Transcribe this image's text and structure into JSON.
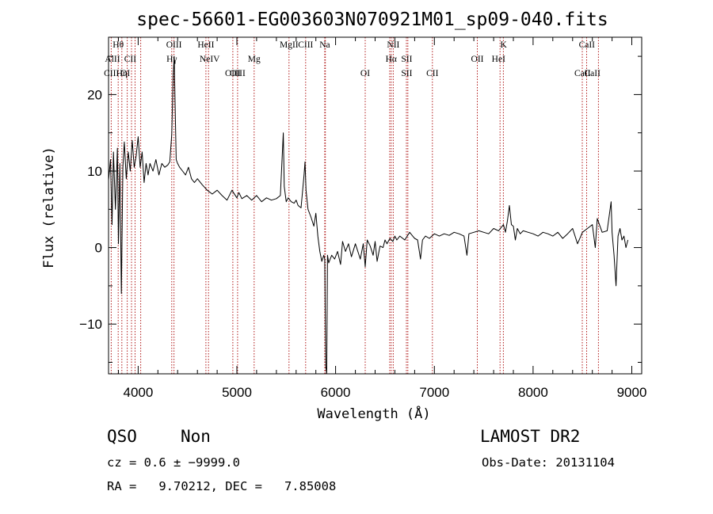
{
  "chart_data": {
    "type": "line",
    "title": "spec-56601-EG003603N070921M01_sp09-040.fits",
    "xlabel": "Wavelength (Å)",
    "ylabel": "Flux (relative)",
    "xlim": [
      3700,
      9100
    ],
    "ylim": [
      -16.5,
      27.5
    ],
    "x_ticks": [
      "4000",
      "5000",
      "6000",
      "7000",
      "8000",
      "9000"
    ],
    "y_ticks": [
      "−10",
      "0",
      "10",
      "20"
    ],
    "series": [
      {
        "points": [
          [
            3700,
            8.8
          ],
          [
            3720,
            11.5
          ],
          [
            3735,
            3.0
          ],
          [
            3750,
            12.5
          ],
          [
            3770,
            5.0
          ],
          [
            3790,
            13.0
          ],
          [
            3800,
            0.5
          ],
          [
            3815,
            11.0
          ],
          [
            3830,
            -6.0
          ],
          [
            3845,
            10.5
          ],
          [
            3860,
            13.8
          ],
          [
            3880,
            9.0
          ],
          [
            3900,
            12.5
          ],
          [
            3920,
            10.0
          ],
          [
            3940,
            14.0
          ],
          [
            3960,
            10.5
          ],
          [
            3980,
            12.0
          ],
          [
            4000,
            14.5
          ],
          [
            4020,
            10.5
          ],
          [
            4040,
            12.5
          ],
          [
            4060,
            8.5
          ],
          [
            4080,
            11.0
          ],
          [
            4100,
            9.5
          ],
          [
            4120,
            11.0
          ],
          [
            4150,
            10.0
          ],
          [
            4180,
            11.5
          ],
          [
            4210,
            9.5
          ],
          [
            4240,
            11.0
          ],
          [
            4270,
            10.5
          ],
          [
            4300,
            10.8
          ],
          [
            4320,
            11.2
          ],
          [
            4340,
            14.8
          ],
          [
            4355,
            22.5
          ],
          [
            4365,
            25.0
          ],
          [
            4372,
            20.0
          ],
          [
            4385,
            11.5
          ],
          [
            4400,
            11.0
          ],
          [
            4420,
            10.5
          ],
          [
            4450,
            10.0
          ],
          [
            4480,
            9.5
          ],
          [
            4510,
            10.5
          ],
          [
            4540,
            9.0
          ],
          [
            4570,
            8.5
          ],
          [
            4600,
            9.0
          ],
          [
            4650,
            8.2
          ],
          [
            4700,
            7.5
          ],
          [
            4750,
            7.0
          ],
          [
            4800,
            7.5
          ],
          [
            4850,
            6.8
          ],
          [
            4900,
            6.2
          ],
          [
            4950,
            7.5
          ],
          [
            5000,
            6.5
          ],
          [
            5020,
            7.2
          ],
          [
            5050,
            6.4
          ],
          [
            5100,
            6.8
          ],
          [
            5150,
            6.2
          ],
          [
            5200,
            6.8
          ],
          [
            5250,
            6.0
          ],
          [
            5300,
            6.5
          ],
          [
            5350,
            6.2
          ],
          [
            5400,
            6.4
          ],
          [
            5440,
            6.8
          ],
          [
            5470,
            15.0
          ],
          [
            5480,
            8.0
          ],
          [
            5500,
            6.0
          ],
          [
            5520,
            6.5
          ],
          [
            5550,
            6.0
          ],
          [
            5580,
            5.8
          ],
          [
            5600,
            6.2
          ],
          [
            5620,
            5.5
          ],
          [
            5650,
            5.2
          ],
          [
            5680,
            9.5
          ],
          [
            5690,
            11.2
          ],
          [
            5700,
            7.5
          ],
          [
            5720,
            5.0
          ],
          [
            5750,
            4.0
          ],
          [
            5780,
            2.8
          ],
          [
            5800,
            4.5
          ],
          [
            5820,
            1.5
          ],
          [
            5840,
            -0.5
          ],
          [
            5860,
            -1.8
          ],
          [
            5880,
            -1.0
          ],
          [
            5890,
            -1.5
          ],
          [
            5900,
            -15.5
          ],
          [
            5910,
            -16.5
          ],
          [
            5918,
            -1.0
          ],
          [
            5930,
            -2.0
          ],
          [
            5960,
            -1.0
          ],
          [
            5990,
            -1.5
          ],
          [
            6020,
            -0.5
          ],
          [
            6050,
            -2.2
          ],
          [
            6070,
            0.8
          ],
          [
            6100,
            -0.5
          ],
          [
            6130,
            0.5
          ],
          [
            6160,
            -1.2
          ],
          [
            6200,
            0.5
          ],
          [
            6250,
            -1.5
          ],
          [
            6280,
            0.5
          ],
          [
            6300,
            -2.5
          ],
          [
            6320,
            1.0
          ],
          [
            6350,
            0.2
          ],
          [
            6380,
            -1.0
          ],
          [
            6400,
            0.8
          ],
          [
            6420,
            -1.8
          ],
          [
            6450,
            0.2
          ],
          [
            6480,
            0.0
          ],
          [
            6500,
            1.0
          ],
          [
            6520,
            0.5
          ],
          [
            6550,
            1.2
          ],
          [
            6580,
            0.8
          ],
          [
            6600,
            1.5
          ],
          [
            6620,
            1.0
          ],
          [
            6650,
            1.5
          ],
          [
            6680,
            1.2
          ],
          [
            6700,
            1.0
          ],
          [
            6730,
            1.6
          ],
          [
            6750,
            2.0
          ],
          [
            6780,
            1.5
          ],
          [
            6800,
            1.2
          ],
          [
            6830,
            1.0
          ],
          [
            6860,
            -1.5
          ],
          [
            6880,
            1.0
          ],
          [
            6910,
            1.5
          ],
          [
            6950,
            1.2
          ],
          [
            7000,
            1.8
          ],
          [
            7050,
            1.5
          ],
          [
            7100,
            1.8
          ],
          [
            7150,
            1.6
          ],
          [
            7200,
            2.0
          ],
          [
            7250,
            1.8
          ],
          [
            7300,
            1.5
          ],
          [
            7330,
            -1.0
          ],
          [
            7350,
            1.8
          ],
          [
            7400,
            2.0
          ],
          [
            7450,
            2.2
          ],
          [
            7500,
            2.0
          ],
          [
            7550,
            1.8
          ],
          [
            7600,
            2.5
          ],
          [
            7650,
            2.2
          ],
          [
            7700,
            3.0
          ],
          [
            7720,
            2.0
          ],
          [
            7740,
            3.5
          ],
          [
            7760,
            5.5
          ],
          [
            7780,
            3.0
          ],
          [
            7800,
            2.8
          ],
          [
            7820,
            1.0
          ],
          [
            7840,
            2.5
          ],
          [
            7870,
            1.8
          ],
          [
            7900,
            2.2
          ],
          [
            7950,
            2.0
          ],
          [
            8000,
            1.8
          ],
          [
            8050,
            1.5
          ],
          [
            8100,
            2.0
          ],
          [
            8150,
            1.8
          ],
          [
            8200,
            1.5
          ],
          [
            8250,
            2.0
          ],
          [
            8300,
            1.2
          ],
          [
            8350,
            1.8
          ],
          [
            8400,
            2.5
          ],
          [
            8450,
            0.5
          ],
          [
            8500,
            2.0
          ],
          [
            8550,
            2.5
          ],
          [
            8600,
            3.0
          ],
          [
            8630,
            0.0
          ],
          [
            8650,
            3.8
          ],
          [
            8700,
            2.0
          ],
          [
            8750,
            2.2
          ],
          [
            8790,
            6.0
          ],
          [
            8800,
            2.0
          ],
          [
            8820,
            -1.0
          ],
          [
            8840,
            -5.0
          ],
          [
            8860,
            1.5
          ],
          [
            8880,
            2.5
          ],
          [
            8900,
            1.0
          ],
          [
            8920,
            1.5
          ],
          [
            8940,
            0.0
          ],
          [
            8960,
            1.0
          ]
        ]
      }
    ],
    "grid": false,
    "line_labels": [
      {
        "text": "Hθ",
        "w": 3798,
        "row": 1
      },
      {
        "text": "AlII",
        "w": 3740,
        "row": 2
      },
      {
        "text": "CII",
        "w": 3920,
        "row": 2
      },
      {
        "text": "CIII",
        "w": 3730,
        "row": 3
      },
      {
        "text": "Hη",
        "w": 3835,
        "row": 3
      },
      {
        "text": "OI",
        "w": 3870,
        "row": 3
      },
      {
        "text": "OIII",
        "w": 4363,
        "row": 1
      },
      {
        "text": "Hγ",
        "w": 4340,
        "row": 2
      },
      {
        "text": "HeII",
        "w": 4686,
        "row": 1
      },
      {
        "text": "NeIV",
        "w": 4725,
        "row": 2
      },
      {
        "text": "OIII",
        "w": 4959,
        "row": 3
      },
      {
        "text": "OIII",
        "w": 5007,
        "row": 3
      },
      {
        "text": "Mg",
        "w": 5175,
        "row": 2
      },
      {
        "text": "MgII",
        "w": 5528,
        "row": 1
      },
      {
        "text": "CIII",
        "w": 5696,
        "row": 1
      },
      {
        "text": "Na",
        "w": 5890,
        "row": 1
      },
      {
        "text": "OI",
        "w": 6300,
        "row": 3
      },
      {
        "text": "NII",
        "w": 6584,
        "row": 1
      },
      {
        "text": "Hα",
        "w": 6563,
        "row": 2
      },
      {
        "text": "SII",
        "w": 6720,
        "row": 2
      },
      {
        "text": "SII",
        "w": 6720,
        "row": 3
      },
      {
        "text": "CII",
        "w": 6980,
        "row": 3
      },
      {
        "text": "OII",
        "w": 7435,
        "row": 2
      },
      {
        "text": "K",
        "w": 7701,
        "row": 1
      },
      {
        "text": "HeI",
        "w": 7650,
        "row": 2
      },
      {
        "text": "CaII",
        "w": 8545,
        "row": 1
      },
      {
        "text": "CaII",
        "w": 8500,
        "row": 3
      },
      {
        "text": "CaII",
        "w": 8600,
        "row": 3
      }
    ],
    "line_markers": [
      3727,
      3798,
      3835,
      3889,
      3933,
      3969,
      4026,
      4340,
      4363,
      4686,
      4713,
      4959,
      5007,
      5175,
      5528,
      5696,
      5890,
      5896,
      6300,
      6548,
      6563,
      6584,
      6717,
      6731,
      6980,
      7435,
      7665,
      7699,
      8498,
      8542,
      8662
    ]
  },
  "footer": {
    "object_class": "QSO",
    "subclass": "Non",
    "cz_line": "cz = 0.6 ± −9999.0",
    "coords_line": "RA =   9.70212, DEC =   7.85008",
    "survey": "LAMOST DR2",
    "obs_date": "Obs-Date: 20131104"
  }
}
